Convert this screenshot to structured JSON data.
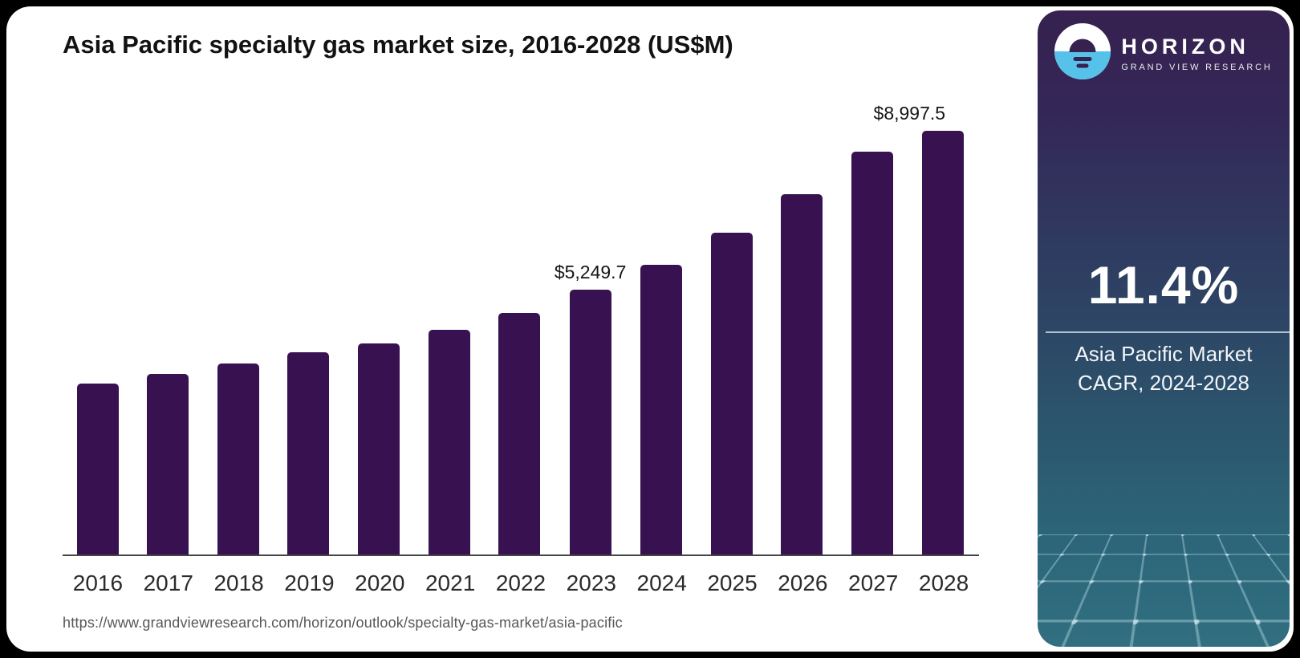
{
  "page": {
    "source_url": "https://www.grandviewresearch.com/horizon/outlook/specialty-gas-market/asia-pacific"
  },
  "chart_data": {
    "type": "bar",
    "title": "Asia Pacific specialty gas market size, 2016-2028 (US$M)",
    "categories": [
      "2016",
      "2017",
      "2018",
      "2019",
      "2020",
      "2021",
      "2022",
      "2023",
      "2024",
      "2025",
      "2026",
      "2027",
      "2028"
    ],
    "values": [
      3390,
      3585,
      3790,
      4015,
      4190,
      4460,
      4795,
      5249.7,
      5750,
      6390,
      7150,
      8000,
      8997.5
    ],
    "point_labels": {
      "2023": "$5,249.7",
      "2028": "$8,997.5"
    },
    "xlabel": "",
    "ylabel": "",
    "ylim": [
      0,
      9000
    ],
    "grid": false,
    "legend": false,
    "bar_color": "#371150",
    "axis_line_color": "#454545"
  },
  "sidebar": {
    "logo_title": "HORIZON",
    "logo_subtitle": "GRAND VIEW RESEARCH",
    "cagr_value": "11.4%",
    "cagr_caption_line1": "Asia Pacific Market",
    "cagr_caption_line2": "CAGR, 2024-2028",
    "colors": {
      "gradient_top": "#36214f",
      "gradient_mid": "#2f3a60",
      "gradient_bottom": "#306f80",
      "logo_blue": "#56c2ea",
      "mesh_line": "#a2c9d5"
    }
  }
}
